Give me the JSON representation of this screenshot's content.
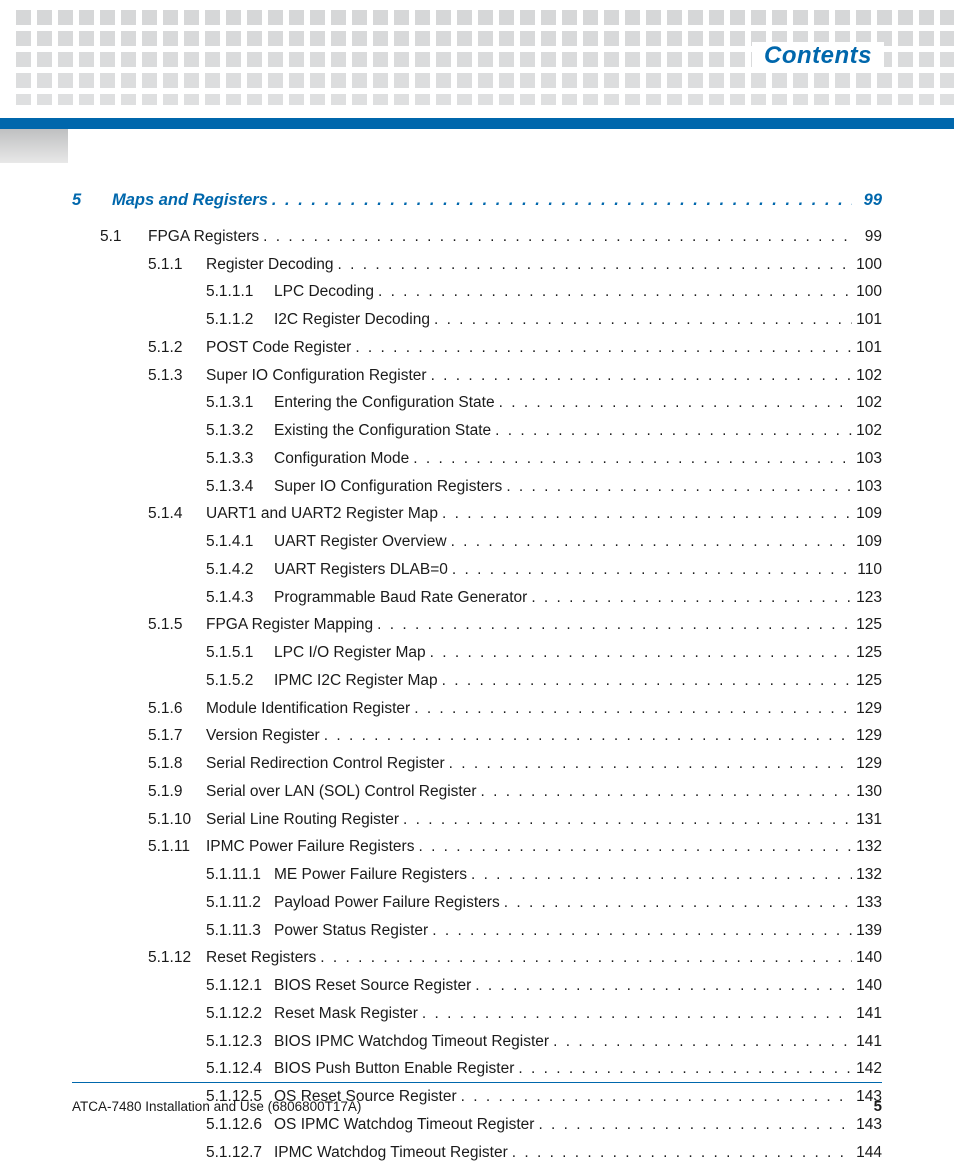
{
  "header": {
    "title": "Contents",
    "title_color": "#0067ac",
    "square_color": "#d6d7d8",
    "bar_color": "#0067ac"
  },
  "footer": {
    "doc_title": "ATCA-7480 Installation and Use (6806800T17A)",
    "page_number": "5",
    "rule_color": "#0067ac"
  },
  "toc": [
    {
      "level": 0,
      "num": "5",
      "title": "Maps and Registers",
      "page": "99"
    },
    {
      "level": 1,
      "num": "5.1",
      "title": "FPGA Registers",
      "page": "99"
    },
    {
      "level": 2,
      "num": "5.1.1",
      "title": "Register Decoding",
      "page": "100"
    },
    {
      "level": 3,
      "num": "5.1.1.1",
      "title": "LPC Decoding",
      "page": "100"
    },
    {
      "level": 3,
      "num": "5.1.1.2",
      "title": "I2C Register Decoding",
      "page": "101"
    },
    {
      "level": 2,
      "num": "5.1.2",
      "title": "POST Code Register",
      "page": "101"
    },
    {
      "level": 2,
      "num": "5.1.3",
      "title": "Super IO Configuration Register",
      "page": "102"
    },
    {
      "level": 3,
      "num": "5.1.3.1",
      "title": "Entering the Configuration State",
      "page": "102"
    },
    {
      "level": 3,
      "num": "5.1.3.2",
      "title": "Existing the Configuration State",
      "page": "102"
    },
    {
      "level": 3,
      "num": "5.1.3.3",
      "title": "Configuration Mode",
      "page": "103"
    },
    {
      "level": 3,
      "num": "5.1.3.4",
      "title": "Super IO Configuration Registers",
      "page": "103"
    },
    {
      "level": 2,
      "num": "5.1.4",
      "title": "UART1 and UART2 Register Map",
      "page": "109"
    },
    {
      "level": 3,
      "num": "5.1.4.1",
      "title": "UART Register Overview",
      "page": "109"
    },
    {
      "level": 3,
      "num": "5.1.4.2",
      "title": "UART Registers DLAB=0",
      "page": "110"
    },
    {
      "level": 3,
      "num": "5.1.4.3",
      "title": "Programmable Baud Rate Generator",
      "page": "123"
    },
    {
      "level": 2,
      "num": "5.1.5",
      "title": "FPGA Register Mapping",
      "page": "125"
    },
    {
      "level": 3,
      "num": "5.1.5.1",
      "title": "LPC I/O Register Map",
      "page": "125"
    },
    {
      "level": 3,
      "num": "5.1.5.2",
      "title": "IPMC I2C Register Map",
      "page": "125"
    },
    {
      "level": 2,
      "num": "5.1.6",
      "title": "Module Identification Register",
      "page": "129"
    },
    {
      "level": 2,
      "num": "5.1.7",
      "title": "Version Register",
      "page": "129"
    },
    {
      "level": 2,
      "num": "5.1.8",
      "title": "Serial Redirection Control Register",
      "page": "129"
    },
    {
      "level": 2,
      "num": "5.1.9",
      "title": "Serial over LAN (SOL) Control Register",
      "page": "130"
    },
    {
      "level": 2,
      "num": "5.1.10",
      "title": "Serial Line Routing Register",
      "page": "131"
    },
    {
      "level": 2,
      "num": "5.1.11",
      "title": "IPMC Power Failure Registers",
      "page": "132"
    },
    {
      "level": 3,
      "num": "5.1.11.1",
      "title": "ME Power Failure Registers",
      "page": "132"
    },
    {
      "level": 3,
      "num": "5.1.11.2",
      "title": "Payload Power Failure Registers",
      "page": "133"
    },
    {
      "level": 3,
      "num": "5.1.11.3",
      "title": "Power Status Register",
      "page": "139"
    },
    {
      "level": 2,
      "num": "5.1.12",
      "title": "Reset Registers",
      "page": "140"
    },
    {
      "level": 3,
      "num": "5.1.12.1",
      "title": "BIOS Reset Source Register",
      "page": "140"
    },
    {
      "level": 3,
      "num": "5.1.12.2",
      "title": "Reset Mask Register",
      "page": "141"
    },
    {
      "level": 3,
      "num": "5.1.12.3",
      "title": "BIOS IPMC Watchdog Timeout Register",
      "page": "141"
    },
    {
      "level": 3,
      "num": "5.1.12.4",
      "title": "BIOS Push Button Enable Register",
      "page": "142"
    },
    {
      "level": 3,
      "num": "5.1.12.5",
      "title": "OS Reset Source Register",
      "page": "143"
    },
    {
      "level": 3,
      "num": "5.1.12.6",
      "title": "OS IPMC Watchdog Timeout Register",
      "page": "143"
    },
    {
      "level": 3,
      "num": "5.1.12.7",
      "title": "IPMC Watchdog Timeout Register",
      "page": "144"
    }
  ]
}
